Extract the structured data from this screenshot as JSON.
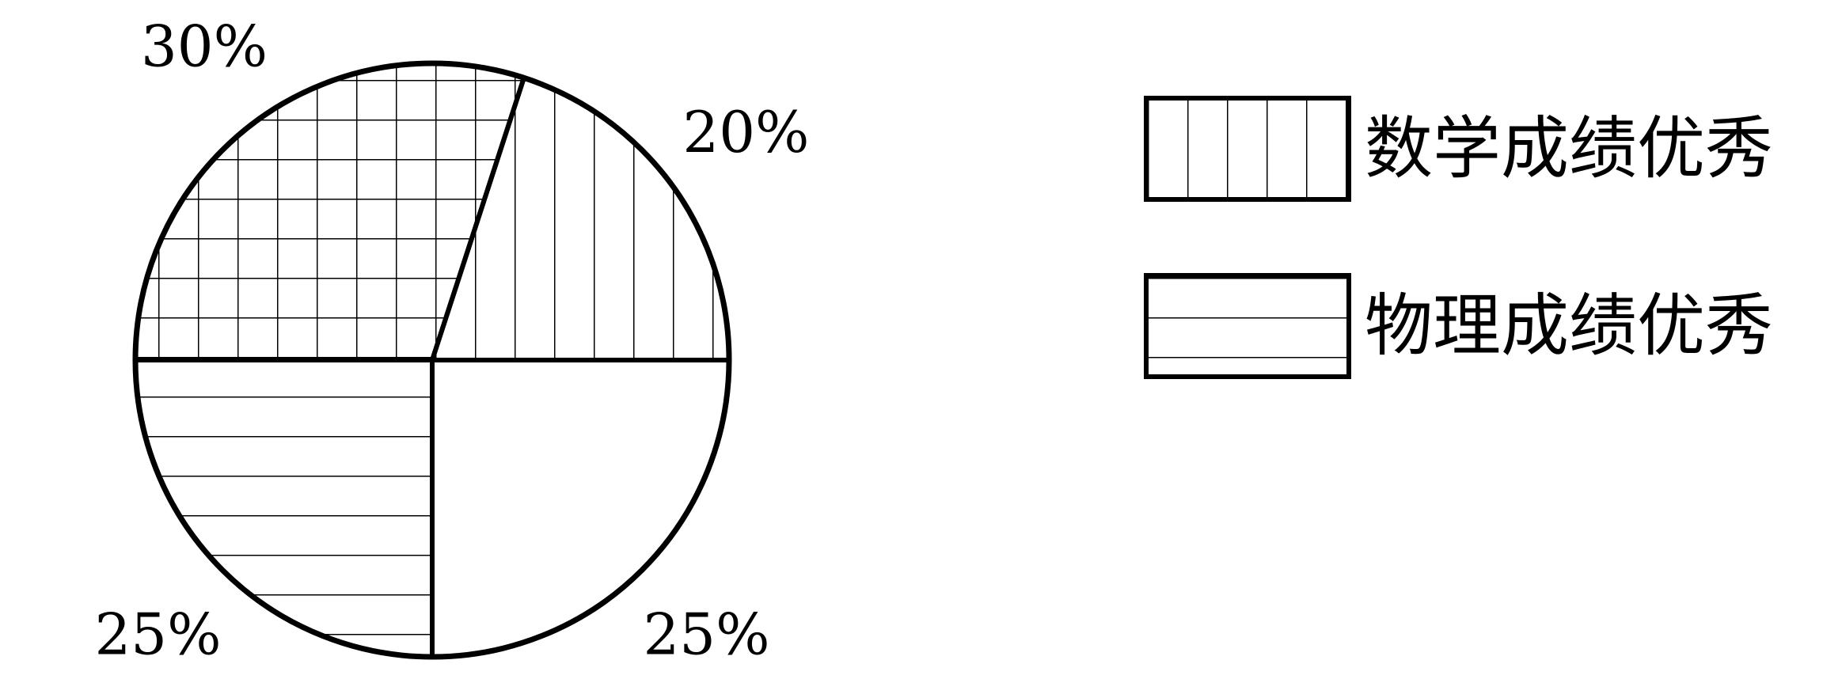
{
  "chart_data": {
    "type": "pie",
    "slices": [
      {
        "label": "20%",
        "value": 20,
        "pattern": "vertical"
      },
      {
        "label": "25%",
        "value": 25,
        "pattern": "none"
      },
      {
        "label": "25%",
        "value": 25,
        "pattern": "horizontal"
      },
      {
        "label": "30%",
        "value": 30,
        "pattern": "grid"
      }
    ],
    "legend": {
      "placement": "right",
      "items": [
        {
          "label": "数学成绩优秀",
          "pattern": "vertical"
        },
        {
          "label": "物理成绩优秀",
          "pattern": "horizontal"
        }
      ]
    },
    "colors": {
      "stroke": "#000000",
      "background": "#ffffff"
    }
  }
}
